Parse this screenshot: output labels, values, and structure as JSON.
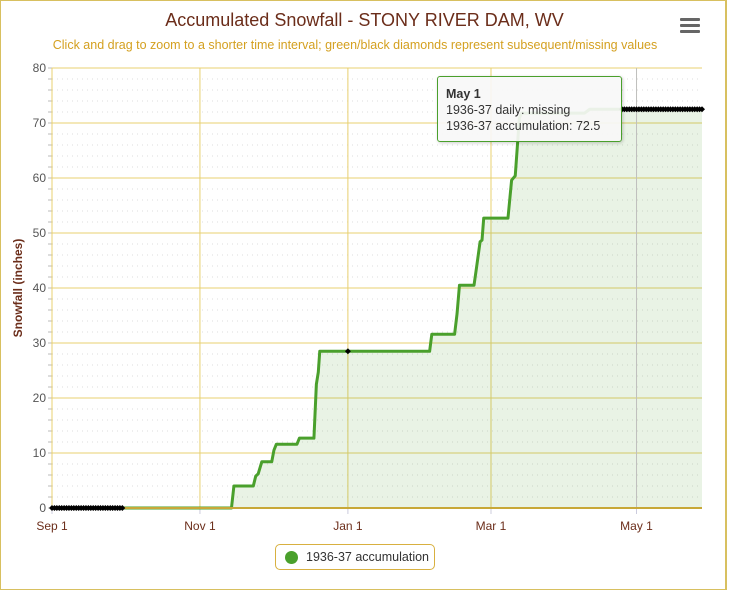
{
  "chart_data": {
    "type": "area",
    "title": "Accumulated Snowfall - STONY RIVER DAM, WV",
    "subtitle": "Click and drag to zoom to a shorter time interval; green/black diamonds represent subsequent/missing values",
    "xlabel": "",
    "ylabel": "Snowfall (inches)",
    "x_unit": "days since Sep 1",
    "xlim": [
      0,
      268
    ],
    "ylim": [
      0,
      80
    ],
    "yticks": [
      0,
      10,
      20,
      30,
      40,
      50,
      60,
      70,
      80
    ],
    "xticks": [
      {
        "day": 0,
        "label": "Sep 1"
      },
      {
        "day": 61,
        "label": "Nov 1"
      },
      {
        "day": 122,
        "label": "Jan 1"
      },
      {
        "day": 181,
        "label": "Mar 1"
      },
      {
        "day": 241,
        "label": "May 1"
      }
    ],
    "grid": true,
    "legend_position": "bottom-center",
    "series": [
      {
        "name": "1936-37 accumulation",
        "color": "#4aa02c",
        "points": [
          [
            0,
            0
          ],
          [
            74,
            0
          ],
          [
            75,
            4
          ],
          [
            83,
            4
          ],
          [
            84,
            5.8
          ],
          [
            85,
            6.2
          ],
          [
            86.5,
            8.4
          ],
          [
            90.6,
            8.4
          ],
          [
            91.5,
            10.5
          ],
          [
            92.5,
            11.6
          ],
          [
            101,
            11.6
          ],
          [
            102,
            12.7
          ],
          [
            108,
            12.7
          ],
          [
            109,
            22.5
          ],
          [
            109.8,
            24.7
          ],
          [
            110.4,
            28.5
          ],
          [
            155.7,
            28.5
          ],
          [
            156.6,
            31.6
          ],
          [
            166,
            31.6
          ],
          [
            167,
            35.3
          ],
          [
            168,
            40.5
          ],
          [
            174,
            40.5
          ],
          [
            175,
            43.6
          ],
          [
            176.5,
            48.4
          ],
          [
            177.3,
            48.7
          ],
          [
            178,
            52.7
          ],
          [
            188,
            52.7
          ],
          [
            189.5,
            59.6
          ],
          [
            191,
            60.4
          ],
          [
            192.7,
            70.9
          ],
          [
            193.6,
            71.8
          ],
          [
            219.6,
            71.8
          ],
          [
            221.7,
            72.5
          ],
          [
            268,
            72.5
          ]
        ]
      }
    ],
    "missing_ranges": [
      [
        0,
        29,
        0
      ],
      [
        235,
        268,
        72.5
      ]
    ],
    "missing_points": [
      [
        122,
        28.5
      ]
    ],
    "crosshair_day": 241
  },
  "tooltip": {
    "date": "May 1",
    "daily": "1936-37 daily: missing",
    "accumulation": "1936-37 accumulation: 72.5"
  },
  "legend": {
    "label": "1936-37 accumulation"
  }
}
